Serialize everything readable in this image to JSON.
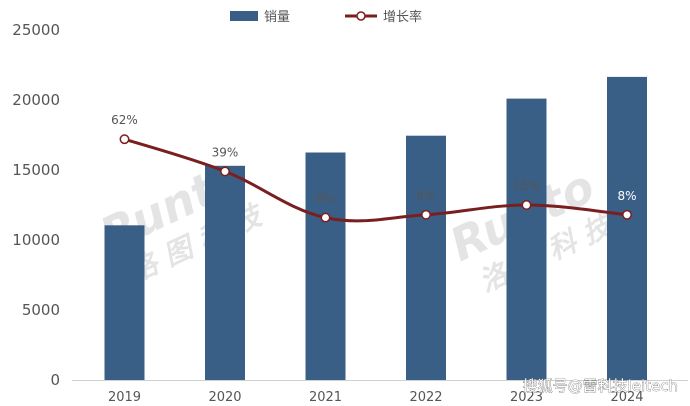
{
  "chart_data": {
    "type": "bar",
    "categories": [
      "2019",
      "2020",
      "2021",
      "2022",
      "2023",
      "2024"
    ],
    "series": [
      {
        "name": "销量",
        "type": "bar",
        "axis": "left",
        "values": [
          11050,
          15300,
          16250,
          17450,
          20100,
          21650
        ],
        "color": "#3a5f87"
      },
      {
        "name": "增长率",
        "type": "line",
        "axis": "right",
        "values": [
          62,
          39,
          6,
          8,
          15,
          8
        ],
        "data_labels": [
          "62%",
          "39%",
          "6%",
          "8%",
          "15%",
          "8%"
        ],
        "color": "#7a1f1f"
      }
    ],
    "ylim": [
      0,
      25000
    ],
    "yticks": [
      "0",
      "5000",
      "10000",
      "15000",
      "20000",
      "25000"
    ],
    "legend_position": "top",
    "grid": false,
    "watermark": "RUNTO 洛图科技",
    "credit": "搜狐号@雷科技leitech"
  }
}
